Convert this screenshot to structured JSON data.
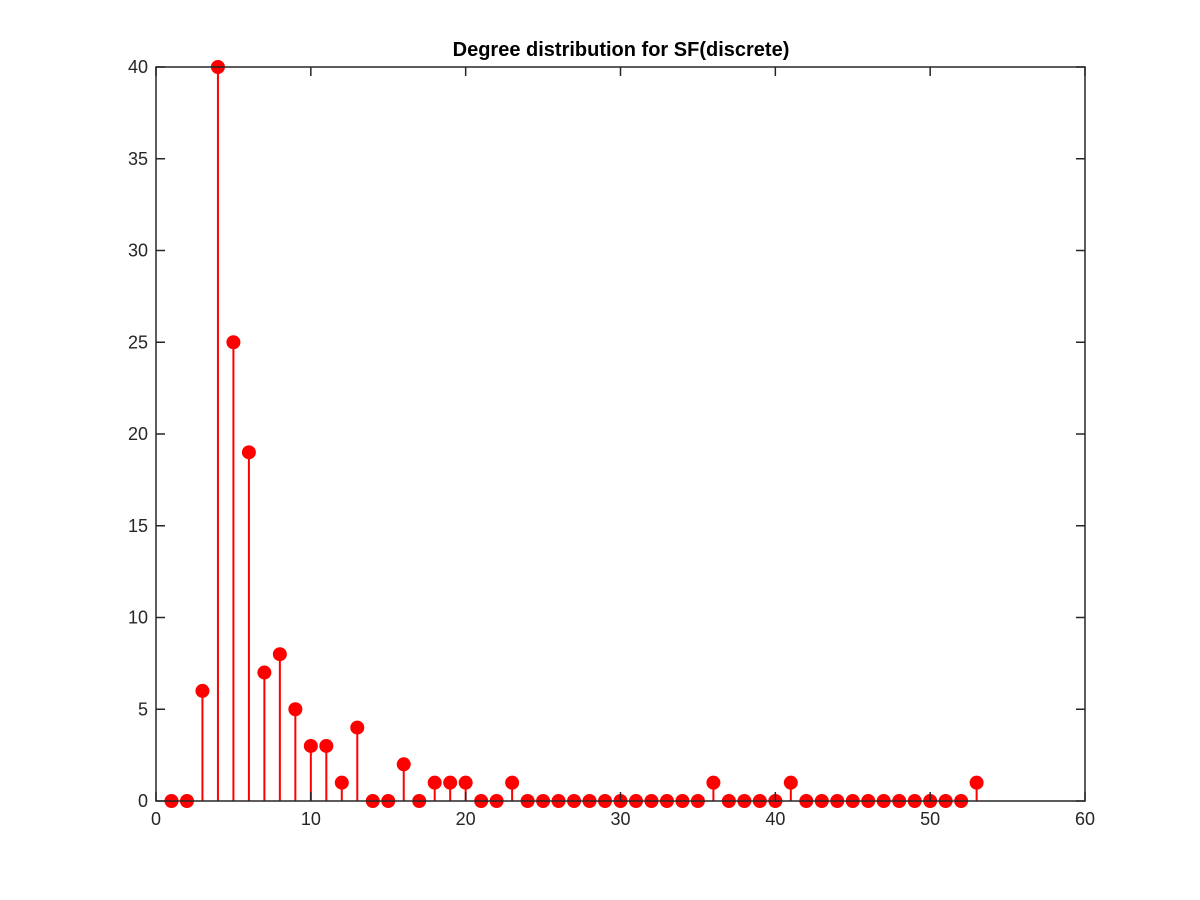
{
  "chart_data": {
    "type": "stem",
    "title": "Degree distribution for SF(discrete)",
    "xlabel": "",
    "ylabel": "",
    "xlim": [
      0,
      60
    ],
    "ylim": [
      0,
      40
    ],
    "xticks": [
      "0",
      "10",
      "20",
      "30",
      "40",
      "50",
      "60"
    ],
    "yticks": [
      "0",
      "5",
      "10",
      "15",
      "20",
      "25",
      "30",
      "35",
      "40"
    ],
    "grid": false,
    "legend": "none",
    "color": "#ff0000",
    "x": [
      1,
      2,
      3,
      4,
      5,
      6,
      7,
      8,
      9,
      10,
      11,
      12,
      13,
      14,
      15,
      16,
      17,
      18,
      19,
      20,
      21,
      22,
      23,
      24,
      25,
      26,
      27,
      28,
      29,
      30,
      31,
      32,
      33,
      34,
      35,
      36,
      37,
      38,
      39,
      40,
      41,
      42,
      43,
      44,
      45,
      46,
      47,
      48,
      49,
      50,
      51,
      52,
      53
    ],
    "values": [
      0,
      0,
      6,
      40,
      25,
      19,
      7,
      8,
      5,
      3,
      3,
      1,
      4,
      0,
      0,
      2,
      0,
      1,
      1,
      1,
      0,
      0,
      1,
      0,
      0,
      0,
      0,
      0,
      0,
      0,
      0,
      0,
      0,
      0,
      0,
      1,
      0,
      0,
      0,
      0,
      1,
      0,
      0,
      0,
      0,
      0,
      0,
      0,
      0,
      0,
      0,
      0,
      1
    ]
  }
}
